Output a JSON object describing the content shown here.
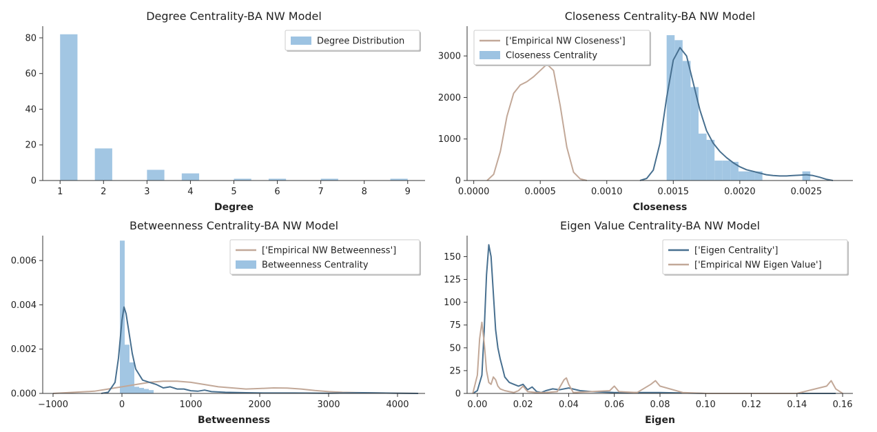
{
  "colors": {
    "bar": "#9dc3e2",
    "blue_line": "#476f8f",
    "tan_line": "#c2a898",
    "axis": "#333333"
  },
  "chart_data": [
    {
      "type": "bar",
      "title": "Degree Centrality-BA NW Model",
      "xlabel": "Degree",
      "ylabel": "",
      "xlim": [
        0.6,
        9.4
      ],
      "ylim": [
        0,
        85
      ],
      "xticks": [
        1,
        2,
        3,
        4,
        5,
        6,
        7,
        8,
        9
      ],
      "yticks": [
        0,
        20,
        40,
        60,
        80
      ],
      "legend_position": "top-right",
      "legend": [
        {
          "label": "Degree Distribution",
          "kind": "bar"
        }
      ],
      "bars": [
        {
          "x0": 1.0,
          "x1": 1.4,
          "value": 82
        },
        {
          "x0": 1.8,
          "x1": 2.2,
          "value": 18
        },
        {
          "x0": 3.0,
          "x1": 3.4,
          "value": 6
        },
        {
          "x0": 3.8,
          "x1": 4.2,
          "value": 4
        },
        {
          "x0": 5.0,
          "x1": 5.4,
          "value": 1
        },
        {
          "x0": 5.8,
          "x1": 6.2,
          "value": 1
        },
        {
          "x0": 7.0,
          "x1": 7.4,
          "value": 1
        },
        {
          "x0": 8.6,
          "x1": 9.0,
          "value": 1
        }
      ],
      "lines": []
    },
    {
      "type": "area",
      "title": "Closeness Centrality-BA NW Model",
      "xlabel": "Closeness",
      "ylabel": "",
      "xlim": [
        -5e-05,
        0.00285
      ],
      "ylim": [
        0,
        3650
      ],
      "xticks": [
        0.0,
        0.0005,
        0.001,
        0.0015,
        0.002,
        0.0025
      ],
      "xtick_labels": [
        "0.0000",
        "0.0005",
        "0.0010",
        "0.0015",
        "0.0020",
        "0.0025"
      ],
      "yticks": [
        0,
        1000,
        2000,
        3000
      ],
      "legend_position": "top-left",
      "legend": [
        {
          "label": "['Empirical NW Closeness']",
          "kind": "line",
          "color": "tan_line"
        },
        {
          "label": "Closeness Centrality",
          "kind": "bar"
        }
      ],
      "bars": [
        {
          "x0": 0.00145,
          "x1": 0.00151,
          "value": 3500
        },
        {
          "x0": 0.00151,
          "x1": 0.00157,
          "value": 3380
        },
        {
          "x0": 0.00157,
          "x1": 0.00163,
          "value": 2880
        },
        {
          "x0": 0.00163,
          "x1": 0.00169,
          "value": 2250
        },
        {
          "x0": 0.00169,
          "x1": 0.00175,
          "value": 1130
        },
        {
          "x0": 0.00175,
          "x1": 0.00181,
          "value": 980
        },
        {
          "x0": 0.00181,
          "x1": 0.00187,
          "value": 480
        },
        {
          "x0": 0.00187,
          "x1": 0.00193,
          "value": 480
        },
        {
          "x0": 0.00193,
          "x1": 0.00199,
          "value": 450
        },
        {
          "x0": 0.00199,
          "x1": 0.00205,
          "value": 220
        },
        {
          "x0": 0.00205,
          "x1": 0.00211,
          "value": 220
        },
        {
          "x0": 0.00211,
          "x1": 0.00217,
          "value": 220
        },
        {
          "x0": 0.00247,
          "x1": 0.00253,
          "value": 220
        }
      ],
      "lines": [
        {
          "name": "['Empirical NW Closeness']",
          "color": "tan_line",
          "x": [
            0.0001,
            0.00015,
            0.0002,
            0.00025,
            0.0003,
            0.00035,
            0.0004,
            0.00045,
            0.0005,
            0.00055,
            0.0006,
            0.00065,
            0.0007,
            0.00075,
            0.0008,
            0.00085
          ],
          "y": [
            0,
            150,
            700,
            1550,
            2100,
            2300,
            2380,
            2500,
            2650,
            2800,
            2650,
            1800,
            800,
            200,
            40,
            0
          ]
        },
        {
          "name": "Closeness Centrality",
          "color": "blue_line",
          "x": [
            0.00125,
            0.0013,
            0.00135,
            0.0014,
            0.00145,
            0.0015,
            0.00155,
            0.0016,
            0.00165,
            0.0017,
            0.00175,
            0.0018,
            0.00185,
            0.0019,
            0.00195,
            0.002,
            0.00205,
            0.0021,
            0.00215,
            0.0022,
            0.00225,
            0.0023,
            0.00235,
            0.0024,
            0.00245,
            0.0025,
            0.00255,
            0.0026,
            0.00265,
            0.0027
          ],
          "y": [
            0,
            50,
            250,
            900,
            2000,
            2900,
            3200,
            3000,
            2350,
            1700,
            1200,
            900,
            700,
            550,
            430,
            330,
            260,
            220,
            180,
            140,
            120,
            110,
            110,
            120,
            130,
            140,
            120,
            80,
            30,
            0
          ]
        }
      ]
    },
    {
      "type": "area",
      "title": "Betweenness Centrality-BA NW Model",
      "xlabel": "Betweenness",
      "ylabel": "",
      "xlim": [
        -1150,
        4400
      ],
      "ylim": [
        0,
        0.007
      ],
      "xticks": [
        -1000,
        0,
        1000,
        2000,
        3000,
        4000
      ],
      "xtick_labels": [
        "−1000",
        "0",
        "1000",
        "2000",
        "3000",
        "4000"
      ],
      "yticks": [
        0.0,
        0.002,
        0.004,
        0.006
      ],
      "ytick_labels": [
        "0.000",
        "0.002",
        "0.004",
        "0.006"
      ],
      "legend_position": "top-right",
      "legend": [
        {
          "label": "['Empirical NW Betweenness']",
          "kind": "line",
          "color": "tan_line"
        },
        {
          "label": "Betweenness Centrality",
          "kind": "bar"
        }
      ],
      "bars": [
        {
          "x0": -30,
          "x1": 40,
          "value": 0.0069
        },
        {
          "x0": 40,
          "x1": 110,
          "value": 0.0022
        },
        {
          "x0": 110,
          "x1": 180,
          "value": 0.0014
        },
        {
          "x0": 180,
          "x1": 250,
          "value": 0.0003
        },
        {
          "x0": 250,
          "x1": 320,
          "value": 0.00025
        },
        {
          "x0": 320,
          "x1": 390,
          "value": 0.0002
        },
        {
          "x0": 390,
          "x1": 460,
          "value": 0.00015
        }
      ],
      "lines": [
        {
          "name": "['Empirical NW Betweenness']",
          "color": "tan_line",
          "x": [
            -1000,
            -700,
            -400,
            -200,
            0,
            200,
            400,
            600,
            800,
            1000,
            1200,
            1400,
            1600,
            1800,
            2000,
            2200,
            2400,
            2600,
            2800,
            3000,
            3200,
            3500,
            3800,
            4100,
            4300
          ],
          "y": [
            0,
            5e-05,
            0.0001,
            0.0002,
            0.0003,
            0.0004,
            0.0005,
            0.00055,
            0.00055,
            0.0005,
            0.0004,
            0.0003,
            0.00025,
            0.0002,
            0.00022,
            0.00025,
            0.00024,
            0.0002,
            0.00013,
            8e-05,
            5e-05,
            3e-05,
            2e-05,
            1e-05,
            0
          ]
        },
        {
          "name": "Betweenness Centrality",
          "color": "blue_line",
          "x": [
            -300,
            -200,
            -100,
            -50,
            0,
            30,
            60,
            100,
            150,
            200,
            300,
            400,
            500,
            600,
            700,
            800,
            900,
            1000,
            1100,
            1200,
            1300,
            1500,
            1800,
            2100,
            2500,
            3000,
            3500,
            4000,
            4300
          ],
          "y": [
            0,
            5e-05,
            0.0005,
            0.0016,
            0.0033,
            0.0039,
            0.0036,
            0.0028,
            0.0018,
            0.0011,
            0.0006,
            0.0005,
            0.0004,
            0.00025,
            0.0003,
            0.0002,
            0.0002,
            0.00012,
            0.0001,
            0.00015,
            8e-05,
            5e-05,
            3e-05,
            2e-05,
            2e-05,
            1e-05,
            3e-05,
            1e-05,
            0
          ]
        }
      ]
    },
    {
      "type": "line",
      "title": "Eigen Value Centrality-BA NW Model",
      "xlabel": "Eigen",
      "ylabel": "",
      "xlim": [
        -0.0045,
        0.1645
      ],
      "ylim": [
        0,
        170
      ],
      "xticks": [
        0.0,
        0.02,
        0.04,
        0.06,
        0.08,
        0.1,
        0.12,
        0.14,
        0.16
      ],
      "xtick_labels": [
        "0.00",
        "0.02",
        "0.04",
        "0.06",
        "0.08",
        "0.10",
        "0.12",
        "0.14",
        "0.16"
      ],
      "yticks": [
        0,
        25,
        50,
        75,
        100,
        125,
        150
      ],
      "legend_position": "top-right",
      "legend": [
        {
          "label": "['Eigen Centrality']",
          "kind": "line",
          "color": "blue_line"
        },
        {
          "label": "['Empirical NW Eigen Value']",
          "kind": "line",
          "color": "tan_line"
        }
      ],
      "bars": [],
      "lines": [
        {
          "name": "['Eigen Centrality']",
          "color": "blue_line",
          "x": [
            -0.002,
            0.0,
            0.002,
            0.003,
            0.004,
            0.005,
            0.006,
            0.007,
            0.008,
            0.009,
            0.01,
            0.011,
            0.012,
            0.014,
            0.016,
            0.018,
            0.02,
            0.022,
            0.024,
            0.026,
            0.028,
            0.03,
            0.033,
            0.036,
            0.04,
            0.045,
            0.05,
            0.06,
            0.07,
            0.08,
            0.1,
            0.12,
            0.14,
            0.157
          ],
          "y": [
            0,
            3,
            20,
            70,
            130,
            163,
            150,
            110,
            70,
            50,
            38,
            28,
            18,
            12,
            10,
            8,
            10,
            4,
            7,
            2,
            1,
            3,
            5,
            4,
            6,
            3,
            2,
            1,
            1,
            1,
            0,
            0,
            0,
            0
          ]
        },
        {
          "name": "['Empirical NW Eigen Value']",
          "color": "tan_line",
          "x": [
            -0.002,
            0.0,
            0.001,
            0.002,
            0.003,
            0.004,
            0.005,
            0.006,
            0.007,
            0.008,
            0.009,
            0.01,
            0.012,
            0.014,
            0.016,
            0.018,
            0.02,
            0.022,
            0.026,
            0.03,
            0.035,
            0.038,
            0.039,
            0.04,
            0.042,
            0.05,
            0.058,
            0.06,
            0.062,
            0.07,
            0.076,
            0.078,
            0.08,
            0.09,
            0.1,
            0.12,
            0.14,
            0.153,
            0.155,
            0.157,
            0.16
          ],
          "y": [
            0,
            20,
            60,
            78,
            55,
            25,
            12,
            10,
            18,
            15,
            8,
            5,
            3,
            2,
            1,
            3,
            8,
            2,
            1,
            1,
            2,
            15,
            17,
            10,
            1,
            2,
            3,
            8,
            2,
            1,
            10,
            14,
            8,
            1,
            0,
            0,
            0,
            8,
            14,
            5,
            0
          ]
        }
      ]
    }
  ]
}
